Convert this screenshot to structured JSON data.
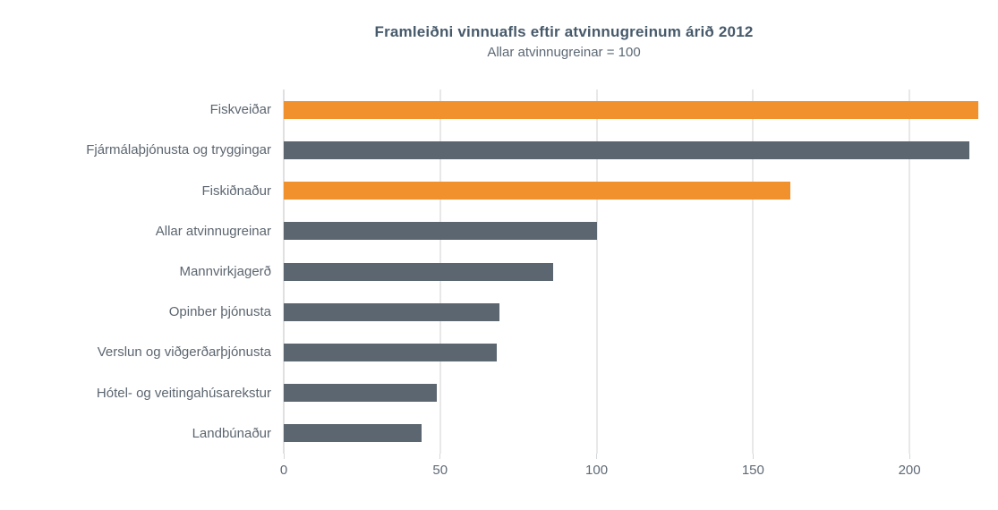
{
  "chart_data": {
    "type": "bar",
    "orientation": "horizontal",
    "title": "Framleiðni vinnuafls eftir atvinnugreinum árið 2012",
    "subtitle": "Allar atvinnugreinar = 100",
    "categories": [
      "Fiskveiðar",
      "Fjármálaþjónusta og tryggingar",
      "Fiskiðnaður",
      "Allar atvinnugreinar",
      "Mannvirkjagerð",
      "Opinber þjónusta",
      "Verslun og viðgerðarþjónusta",
      "Hótel- og veitingahúsarekstur",
      "Landbúnaður"
    ],
    "values": [
      222,
      219,
      162,
      100,
      86,
      69,
      68,
      49,
      44
    ],
    "bar_colors": [
      "#F0912D",
      "#5B6670",
      "#F0912D",
      "#5B6670",
      "#5B6670",
      "#5B6670",
      "#5B6670",
      "#5B6670",
      "#5B6670"
    ],
    "xlabel": "",
    "ylabel": "",
    "xlim": [
      0,
      224
    ],
    "xticks": [
      0,
      50,
      100,
      150,
      200
    ],
    "grid": true,
    "legend": "none"
  },
  "colors": {
    "highlight_bar": "#F0912D",
    "default_bar": "#5B6670",
    "title_text": "#475A6B",
    "label_text": "#5C6670",
    "gridline": "#E8E8E8",
    "background": "#FFFFFF"
  }
}
